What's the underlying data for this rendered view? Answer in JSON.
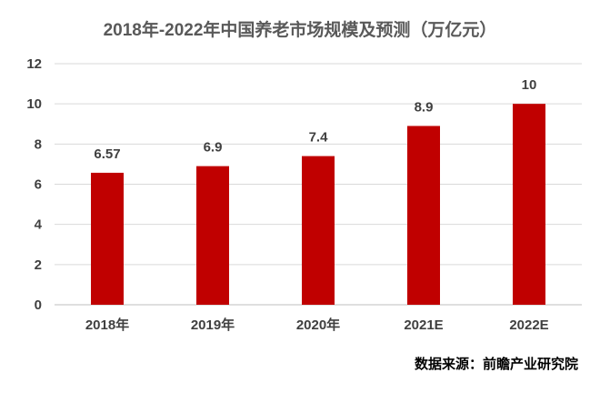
{
  "chart_data": {
    "type": "bar",
    "title": "2018年-2022年中国养老市场规模及预测（万亿元）",
    "categories": [
      "2018年",
      "2019年",
      "2020年",
      "2021E",
      "2022E"
    ],
    "values": [
      6.57,
      6.9,
      7.4,
      8.9,
      10
    ],
    "data_labels": [
      "6.57",
      "6.9",
      "7.4",
      "8.9",
      "10"
    ],
    "ylim": [
      0,
      12
    ],
    "yticks": [
      0,
      2,
      4,
      6,
      8,
      10,
      12
    ],
    "grid": true,
    "legend": "none",
    "bar_color": "#c00000"
  },
  "source_note": "数据来源：前瞻产业研究院"
}
